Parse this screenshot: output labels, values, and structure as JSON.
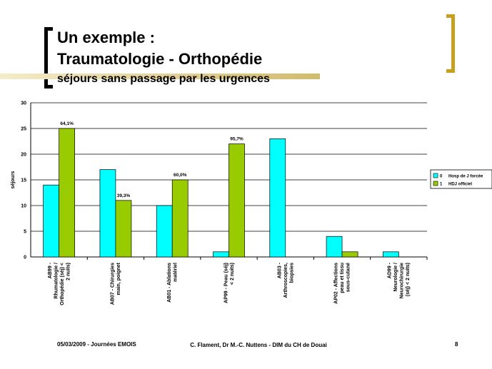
{
  "slide": {
    "title_line1": "Un exemple :",
    "title_line2": "Traumatologie - Orthopédie",
    "subtitle": "séjours sans passage par les urgences",
    "footer_left": "05/03/2009 - Journées EMOIS",
    "footer_center": "C. Flament, Dr M.-C. Nuttens - DIM du CH de Douai",
    "footer_right": "8"
  },
  "colors": {
    "series0": "#00ffff",
    "series1": "#99cc00",
    "accent_gold": "#c8a020"
  },
  "chart_data": {
    "type": "bar",
    "ylabel": "séjours",
    "ylim": [
      0,
      30
    ],
    "yticks": [
      0,
      5,
      10,
      15,
      20,
      25,
      30
    ],
    "grid": true,
    "legend_position": "right",
    "categories": [
      [
        "AB99 -",
        "Rhumatologie /",
        "Orthopédie (séj) <",
        "2 nuits)"
      ],
      [
        "AB07 - Chirurgies",
        "main, poignet"
      ],
      [
        "AB01 - Ablations",
        "matériel"
      ],
      [
        "AP99 - Peau (séj)",
        "< 2 nuits)"
      ],
      [
        "AB03 -",
        "Arthroscopies,",
        "biopsies"
      ],
      [
        "AP02 - Affections",
        "peau et tissu",
        "sous-cutané"
      ],
      [
        "AD99 -",
        "Neurologie /",
        "Neurochirurgie",
        "(séj) < 2 nuits)"
      ]
    ],
    "series": [
      {
        "name": "Hosp de J forcée",
        "key": "0",
        "values": [
          14,
          17,
          10,
          1,
          23,
          4,
          1
        ]
      },
      {
        "name": "HDJ officiel",
        "key": "1",
        "values": [
          25,
          11,
          15,
          22,
          0,
          1,
          0
        ]
      }
    ],
    "data_labels": [
      {
        "category": 0,
        "series": 1,
        "text": "64,1%"
      },
      {
        "category": 1,
        "series": 1,
        "text": "39,3%"
      },
      {
        "category": 2,
        "series": 1,
        "text": "60,0%"
      },
      {
        "category": 3,
        "series": 1,
        "text": "95,7%"
      }
    ]
  }
}
